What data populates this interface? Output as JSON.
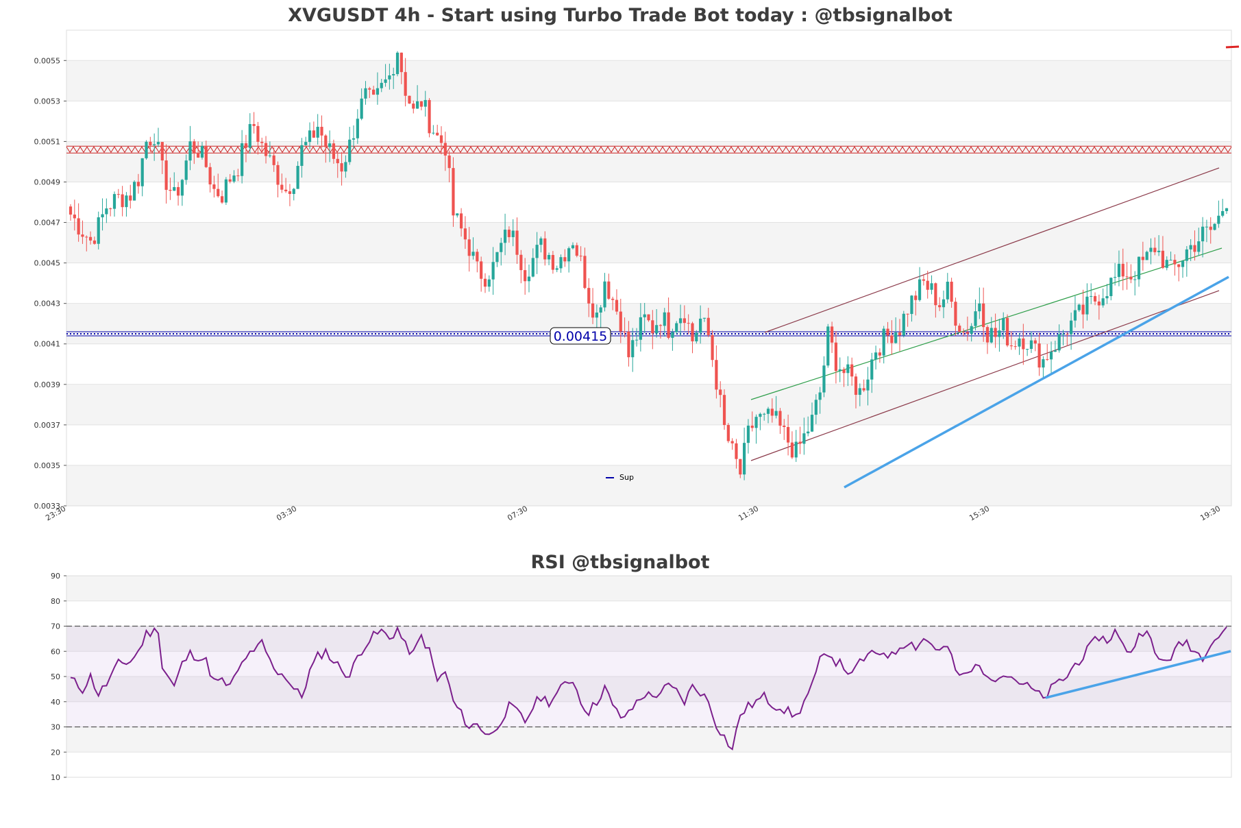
{
  "chart_data": [
    {
      "type": "candlestick",
      "title": "XVGUSDT 4h - Start using Turbo Trade Bot today : @tbsignalbot",
      "ylim": [
        0.0033,
        0.00565
      ],
      "yticks": [
        "0.0033",
        "0.0035",
        "0.0037",
        "0.0039",
        "0.0041",
        "0.0043",
        "0.0045",
        "0.0047",
        "0.0049",
        "0.0051",
        "0.0053",
        "0.0055"
      ],
      "xticks": [
        "23:30",
        "03:30",
        "07:30",
        "11:30",
        "15:30",
        "19:30"
      ],
      "grid": "alternating horizontal bands",
      "legend": [
        {
          "name": "Sup",
          "color": "#0000aa"
        }
      ],
      "current_price_label": "0.00415",
      "resistance_level": 0.00506,
      "support_level": 0.00415,
      "colors": {
        "up": "#26a69a",
        "down": "#ef5350",
        "resistance": "#cc2222",
        "support": "#0000aa",
        "trend": "#4aa3e8",
        "channel_mid": "#2e9e4a",
        "channel_edge": "#8b3a4a"
      },
      "close_anchors": [
        [
          0,
          0.00474
        ],
        [
          3,
          0.00466
        ],
        [
          5,
          0.00461
        ],
        [
          7,
          0.00468
        ],
        [
          9,
          0.00478
        ],
        [
          12,
          0.00482
        ],
        [
          15,
          0.00484
        ],
        [
          17,
          0.00492
        ],
        [
          19,
          0.0051
        ],
        [
          21,
          0.00514
        ],
        [
          23,
          0.00495
        ],
        [
          26,
          0.00482
        ],
        [
          28,
          0.00492
        ],
        [
          30,
          0.00508
        ],
        [
          32,
          0.00506
        ],
        [
          34,
          0.00498
        ],
        [
          36,
          0.00486
        ],
        [
          38,
          0.00484
        ],
        [
          40,
          0.00492
        ],
        [
          42,
          0.00498
        ],
        [
          44,
          0.0051
        ],
        [
          46,
          0.00518
        ],
        [
          48,
          0.00508
        ],
        [
          50,
          0.005
        ],
        [
          52,
          0.00493
        ],
        [
          54,
          0.00486
        ],
        [
          56,
          0.00492
        ],
        [
          58,
          0.00506
        ],
        [
          60,
          0.0051
        ],
        [
          62,
          0.00518
        ],
        [
          64,
          0.00508
        ],
        [
          66,
          0.00502
        ],
        [
          68,
          0.00498
        ],
        [
          70,
          0.00508
        ],
        [
          72,
          0.00524
        ],
        [
          74,
          0.00532
        ],
        [
          76,
          0.00528
        ],
        [
          78,
          0.00536
        ],
        [
          80,
          0.00542
        ],
        [
          82,
          0.00556
        ],
        [
          84,
          0.00536
        ],
        [
          86,
          0.00524
        ],
        [
          88,
          0.0053
        ],
        [
          90,
          0.0052
        ],
        [
          92,
          0.00512
        ],
        [
          94,
          0.00508
        ],
        [
          96,
          0.00474
        ],
        [
          98,
          0.00466
        ],
        [
          100,
          0.00458
        ],
        [
          102,
          0.00446
        ],
        [
          104,
          0.00444
        ],
        [
          106,
          0.00448
        ],
        [
          108,
          0.00458
        ],
        [
          110,
          0.00466
        ],
        [
          112,
          0.00458
        ],
        [
          114,
          0.00446
        ],
        [
          116,
          0.00452
        ],
        [
          118,
          0.00458
        ],
        [
          120,
          0.00454
        ],
        [
          122,
          0.0045
        ],
        [
          124,
          0.00456
        ],
        [
          126,
          0.00462
        ],
        [
          128,
          0.0045
        ],
        [
          130,
          0.00434
        ],
        [
          132,
          0.00424
        ],
        [
          134,
          0.00442
        ],
        [
          136,
          0.00432
        ],
        [
          138,
          0.00422
        ],
        [
          140,
          0.00404
        ],
        [
          142,
          0.00414
        ],
        [
          144,
          0.00422
        ],
        [
          146,
          0.00418
        ],
        [
          148,
          0.00424
        ],
        [
          150,
          0.00418
        ],
        [
          152,
          0.00424
        ],
        [
          154,
          0.00426
        ],
        [
          156,
          0.00412
        ],
        [
          158,
          0.00422
        ],
        [
          160,
          0.00414
        ],
        [
          162,
          0.00392
        ],
        [
          164,
          0.00368
        ],
        [
          166,
          0.00356
        ],
        [
          168,
          0.00346
        ],
        [
          170,
          0.00365
        ],
        [
          172,
          0.00374
        ],
        [
          174,
          0.00372
        ],
        [
          176,
          0.00374
        ],
        [
          178,
          0.00368
        ],
        [
          180,
          0.00362
        ],
        [
          182,
          0.00356
        ],
        [
          184,
          0.00364
        ],
        [
          186,
          0.00372
        ],
        [
          188,
          0.00386
        ],
        [
          190,
          0.00414
        ],
        [
          192,
          0.00402
        ],
        [
          194,
          0.00396
        ],
        [
          196,
          0.00392
        ],
        [
          198,
          0.00386
        ],
        [
          200,
          0.00396
        ],
        [
          202,
          0.00408
        ],
        [
          204,
          0.00412
        ],
        [
          206,
          0.00416
        ],
        [
          208,
          0.00418
        ],
        [
          210,
          0.00428
        ],
        [
          212,
          0.00434
        ],
        [
          214,
          0.0044
        ],
        [
          216,
          0.00436
        ],
        [
          218,
          0.0043
        ],
        [
          220,
          0.00436
        ],
        [
          222,
          0.00424
        ],
        [
          224,
          0.00416
        ],
        [
          226,
          0.0042
        ],
        [
          228,
          0.00432
        ],
        [
          230,
          0.00416
        ],
        [
          232,
          0.00414
        ],
        [
          234,
          0.00418
        ],
        [
          236,
          0.0041
        ],
        [
          238,
          0.00414
        ],
        [
          240,
          0.00412
        ],
        [
          242,
          0.00406
        ],
        [
          244,
          0.00402
        ],
        [
          246,
          0.00408
        ],
        [
          248,
          0.00412
        ],
        [
          250,
          0.00418
        ],
        [
          252,
          0.00422
        ],
        [
          254,
          0.00426
        ],
        [
          256,
          0.0043
        ],
        [
          258,
          0.00434
        ],
        [
          260,
          0.00438
        ],
        [
          262,
          0.00442
        ],
        [
          264,
          0.00446
        ],
        [
          266,
          0.00444
        ],
        [
          268,
          0.00448
        ],
        [
          270,
          0.00452
        ],
        [
          272,
          0.00458
        ],
        [
          274,
          0.00452
        ],
        [
          276,
          0.00446
        ],
        [
          278,
          0.0045
        ],
        [
          280,
          0.00456
        ],
        [
          282,
          0.0046
        ],
        [
          284,
          0.00464
        ],
        [
          286,
          0.00466
        ],
        [
          288,
          0.00472
        ],
        [
          290,
          0.00482
        ]
      ],
      "candle_count": 291
    },
    {
      "type": "line",
      "title": "RSI @tbsignalbot",
      "ylim": [
        10,
        90
      ],
      "yticks": [
        "10",
        "20",
        "30",
        "40",
        "50",
        "60",
        "70",
        "80",
        "90"
      ],
      "overbought": 70,
      "oversold": 30,
      "color": "#7b1f8c",
      "rsi_anchors": [
        [
          0,
          49
        ],
        [
          3,
          45
        ],
        [
          5,
          50
        ],
        [
          7,
          43
        ],
        [
          9,
          47
        ],
        [
          12,
          55
        ],
        [
          15,
          56
        ],
        [
          17,
          60
        ],
        [
          19,
          67
        ],
        [
          21,
          68
        ],
        [
          22,
          69
        ],
        [
          23,
          54
        ],
        [
          26,
          46
        ],
        [
          28,
          55
        ],
        [
          30,
          59
        ],
        [
          32,
          58
        ],
        [
          34,
          56
        ],
        [
          36,
          48
        ],
        [
          38,
          48
        ],
        [
          40,
          46
        ],
        [
          42,
          52
        ],
        [
          44,
          58
        ],
        [
          46,
          59
        ],
        [
          48,
          64
        ],
        [
          50,
          56
        ],
        [
          52,
          52
        ],
        [
          54,
          50
        ],
        [
          56,
          45
        ],
        [
          58,
          42
        ],
        [
          60,
          52
        ],
        [
          62,
          58
        ],
        [
          64,
          60
        ],
        [
          66,
          56
        ],
        [
          68,
          53
        ],
        [
          70,
          50
        ],
        [
          72,
          58
        ],
        [
          74,
          63
        ],
        [
          76,
          66
        ],
        [
          78,
          68
        ],
        [
          80,
          65
        ],
        [
          82,
          69
        ],
        [
          84,
          62
        ],
        [
          86,
          59
        ],
        [
          88,
          66
        ],
        [
          90,
          60
        ],
        [
          92,
          48
        ],
        [
          94,
          52
        ],
        [
          96,
          40
        ],
        [
          98,
          35
        ],
        [
          100,
          30
        ],
        [
          102,
          31
        ],
        [
          104,
          28
        ],
        [
          106,
          27
        ],
        [
          108,
          33
        ],
        [
          110,
          38
        ],
        [
          112,
          36
        ],
        [
          114,
          32
        ],
        [
          116,
          38
        ],
        [
          118,
          42
        ],
        [
          120,
          40
        ],
        [
          122,
          43
        ],
        [
          124,
          47
        ],
        [
          126,
          49
        ],
        [
          128,
          40
        ],
        [
          130,
          36
        ],
        [
          132,
          40
        ],
        [
          134,
          46
        ],
        [
          136,
          38
        ],
        [
          138,
          34
        ],
        [
          140,
          35
        ],
        [
          142,
          40
        ],
        [
          144,
          43
        ],
        [
          146,
          42
        ],
        [
          148,
          44
        ],
        [
          150,
          46
        ],
        [
          152,
          44
        ],
        [
          154,
          40
        ],
        [
          156,
          46
        ],
        [
          158,
          44
        ],
        [
          160,
          40
        ],
        [
          162,
          31
        ],
        [
          164,
          26
        ],
        [
          166,
          21
        ],
        [
          168,
          35
        ],
        [
          170,
          38
        ],
        [
          172,
          40
        ],
        [
          174,
          42
        ],
        [
          176,
          39
        ],
        [
          178,
          38
        ],
        [
          180,
          36
        ],
        [
          182,
          34
        ],
        [
          184,
          40
        ],
        [
          186,
          46
        ],
        [
          188,
          56
        ],
        [
          190,
          60
        ],
        [
          192,
          56
        ],
        [
          194,
          54
        ],
        [
          196,
          50
        ],
        [
          198,
          56
        ],
        [
          200,
          58
        ],
        [
          202,
          59
        ],
        [
          204,
          60
        ],
        [
          206,
          58
        ],
        [
          208,
          62
        ],
        [
          210,
          64
        ],
        [
          212,
          62
        ],
        [
          214,
          65
        ],
        [
          216,
          63
        ],
        [
          218,
          60
        ],
        [
          220,
          62
        ],
        [
          222,
          52
        ],
        [
          224,
          50
        ],
        [
          226,
          52
        ],
        [
          228,
          56
        ],
        [
          230,
          48
        ],
        [
          232,
          50
        ],
        [
          234,
          52
        ],
        [
          236,
          50
        ],
        [
          238,
          48
        ],
        [
          240,
          46
        ],
        [
          242,
          44
        ],
        [
          244,
          41
        ],
        [
          246,
          45
        ],
        [
          248,
          48
        ],
        [
          250,
          50
        ],
        [
          252,
          55
        ],
        [
          254,
          58
        ],
        [
          256,
          62
        ],
        [
          258,
          66
        ],
        [
          260,
          64
        ],
        [
          262,
          68
        ],
        [
          264,
          62
        ],
        [
          266,
          60
        ],
        [
          268,
          66
        ],
        [
          270,
          70
        ],
        [
          272,
          58
        ],
        [
          274,
          56
        ],
        [
          276,
          58
        ],
        [
          278,
          62
        ],
        [
          280,
          64
        ],
        [
          282,
          60
        ],
        [
          284,
          58
        ],
        [
          286,
          64
        ],
        [
          288,
          66
        ],
        [
          290,
          70
        ]
      ]
    }
  ]
}
